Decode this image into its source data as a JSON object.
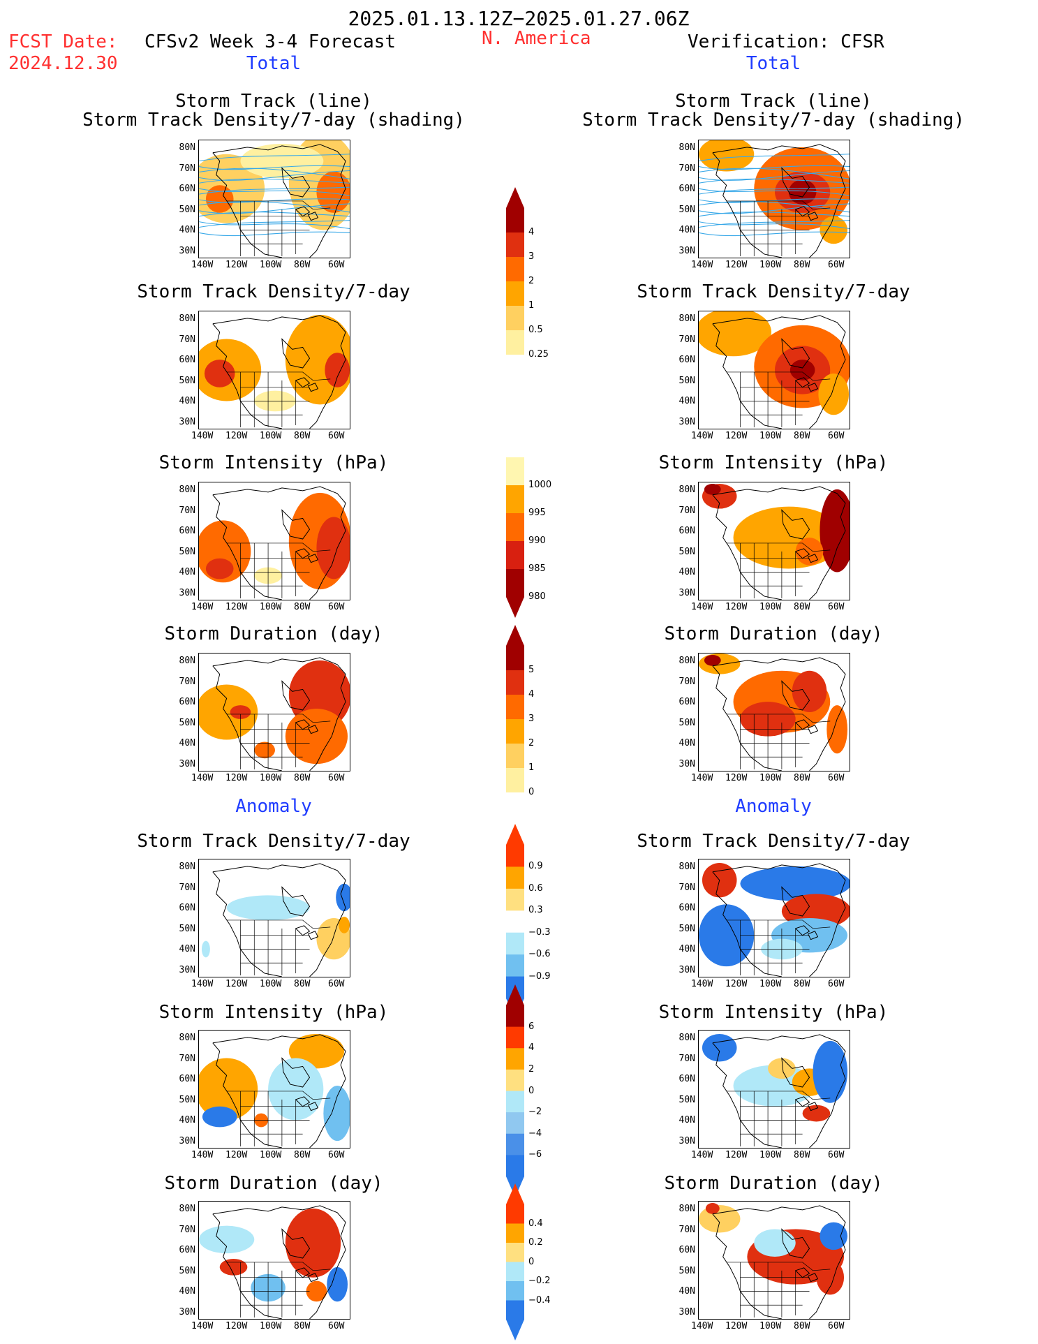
{
  "header": {
    "period": "2025.01.13.12Z−2025.01.27.06Z",
    "fcst_label": "FCST Date:",
    "fcst_date": "2024.12.30",
    "model_title": "CFSv2 Week 3-4 Forecast",
    "region": "N. America",
    "verification": "Verification: CFSR",
    "left_total": "Total",
    "right_total": "Total",
    "left_anomaly": "Anomaly",
    "right_anomaly": "Anomaly"
  },
  "titles": {
    "p1_line1": "Storm Track (line)",
    "p1_line2": "Storm Track Density/7-day (shading)",
    "p2": "Storm Track Density/7-day",
    "p3": "Storm Intensity (hPa)",
    "p4": "Storm Duration (day)",
    "p5": "Storm Track Density/7-day",
    "p6": "Storm Intensity (hPa)",
    "p7": "Storm Duration (day)"
  },
  "axes": {
    "lat": [
      "80N",
      "70N",
      "60N",
      "50N",
      "40N",
      "30N"
    ],
    "lon": [
      "140W",
      "120W",
      "100W",
      "80W",
      "60W"
    ]
  },
  "colorbars": {
    "density": {
      "labels": [
        "4",
        "3",
        "2",
        "1",
        "0.5",
        "0.25"
      ],
      "colors": [
        "#a00000",
        "#e03010",
        "#ff6a00",
        "#ffa500",
        "#ffd060",
        "#fff0a0"
      ]
    },
    "intensity": {
      "labels": [
        "1000",
        "995",
        "990",
        "985",
        "980"
      ],
      "colors": [
        "#fff6b0",
        "#ffa500",
        "#ff6a00",
        "#d82010",
        "#a00000"
      ]
    },
    "duration": {
      "labels": [
        "5",
        "4",
        "3",
        "2",
        "1",
        "0"
      ],
      "colors": [
        "#a00000",
        "#e03010",
        "#ff6a00",
        "#ffa500",
        "#ffd060",
        "#fff0a0"
      ]
    },
    "anom_density": {
      "labels": [
        "0.9",
        "0.6",
        "0.3",
        "−0.3",
        "−0.6",
        "−0.9"
      ],
      "colors": [
        "#ff3a00",
        "#ffa500",
        "#ffe080",
        "#ffffff",
        "#b0e8f8",
        "#70c0f0",
        "#2a7ae8"
      ]
    },
    "anom_intensity": {
      "labels": [
        "6",
        "4",
        "2",
        "0",
        "−2",
        "−4",
        "−6"
      ],
      "colors": [
        "#a00000",
        "#ff3a00",
        "#ffa500",
        "#ffe080",
        "#b0e8f8",
        "#90c8f0",
        "#4a90e8",
        "#2a7ae8"
      ]
    },
    "anom_duration": {
      "labels": [
        "0.4",
        "0.2",
        "0",
        "−0.2",
        "−0.4"
      ],
      "colors": [
        "#ff3a00",
        "#ffa500",
        "#ffe080",
        "#b0e8f8",
        "#70c0f0",
        "#2a7ae8"
      ]
    }
  },
  "colors": {
    "title_red": "#ff3030",
    "title_blue": "#1f3cff"
  }
}
